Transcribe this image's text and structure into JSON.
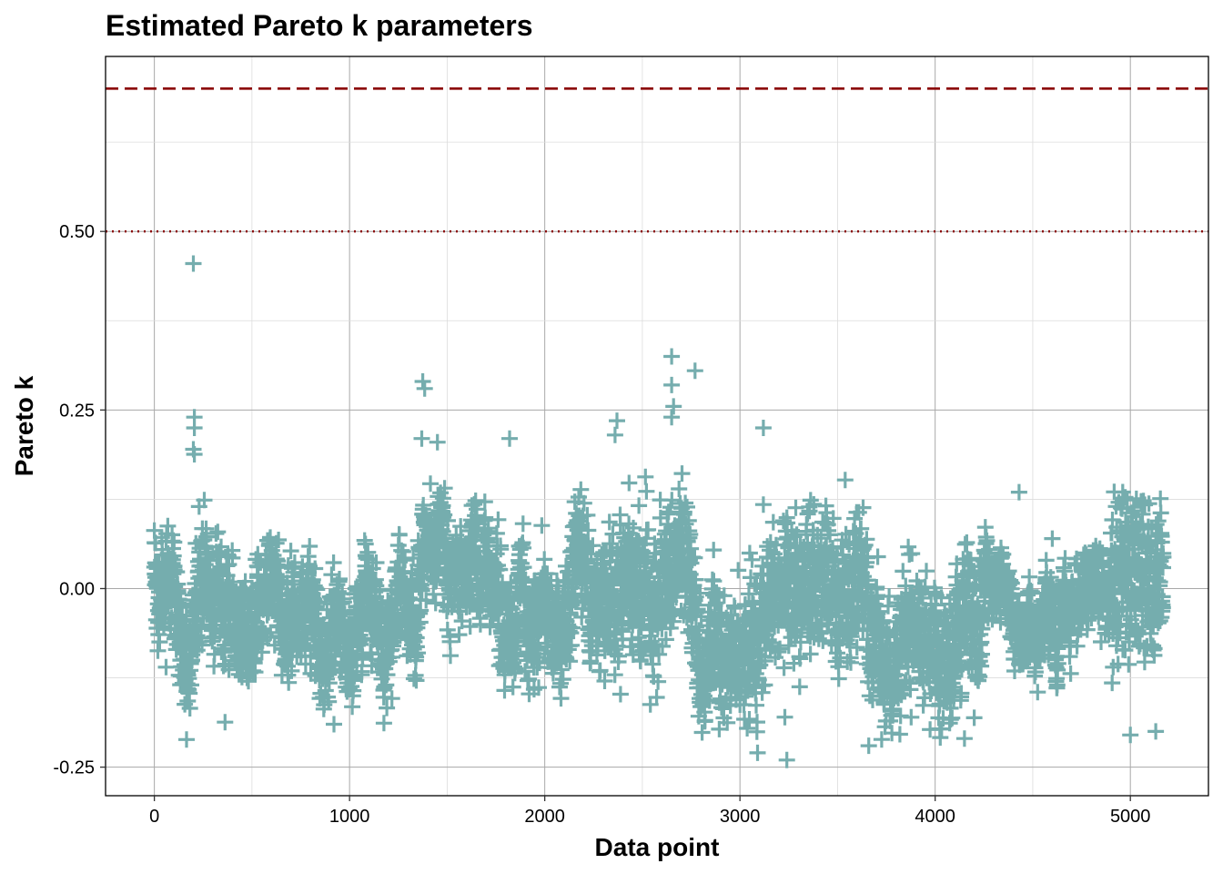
{
  "chart_data": {
    "type": "scatter",
    "title": "Estimated Pareto k parameters",
    "xlabel": "Data point",
    "ylabel": "Pareto k",
    "xlim": [
      -250,
      5400
    ],
    "ylim": [
      -0.29,
      0.745
    ],
    "x_ticks": [
      0,
      1000,
      2000,
      3000,
      4000,
      5000
    ],
    "y_ticks": [
      -0.25,
      0.0,
      0.25,
      0.5
    ],
    "x_tick_labels": [
      "0",
      "1000",
      "2000",
      "3000",
      "4000",
      "5000"
    ],
    "y_tick_labels": [
      "-0.25",
      "0.00",
      "0.25",
      "0.50"
    ],
    "grid": true,
    "marker": "plus",
    "point_color": "#75adae",
    "reference_lines": [
      {
        "y": 0.7,
        "style": "dashed",
        "color": "#8b0000"
      },
      {
        "y": 0.5,
        "style": "dotted",
        "color": "#8b0000"
      }
    ],
    "n_points": 5170,
    "regimes": [
      {
        "x": [
          0,
          150
        ],
        "center": 0.02,
        "spread": 0.04
      },
      {
        "x": [
          150,
          400
        ],
        "center": -0.01,
        "spread": 0.05
      },
      {
        "x": [
          400,
          800
        ],
        "center": -0.03,
        "spread": 0.045
      },
      {
        "x": [
          800,
          1350
        ],
        "center": -0.05,
        "spread": 0.04
      },
      {
        "x": [
          1350,
          1750
        ],
        "center": 0.02,
        "spread": 0.04
      },
      {
        "x": [
          1750,
          2300
        ],
        "center": -0.01,
        "spread": 0.05
      },
      {
        "x": [
          2300,
          2750
        ],
        "center": 0.0,
        "spread": 0.06
      },
      {
        "x": [
          2750,
          3050
        ],
        "center": -0.07,
        "spread": 0.06
      },
      {
        "x": [
          3050,
          3650
        ],
        "center": 0.0,
        "spread": 0.06
      },
      {
        "x": [
          3650,
          4250
        ],
        "center": -0.06,
        "spread": 0.055
      },
      {
        "x": [
          4250,
          4900
        ],
        "center": -0.03,
        "spread": 0.03
      },
      {
        "x": [
          4900,
          5170
        ],
        "center": 0.0,
        "spread": 0.07
      }
    ],
    "outliers": [
      {
        "x": 200,
        "y": 0.455
      },
      {
        "x": 205,
        "y": 0.24
      },
      {
        "x": 205,
        "y": 0.225
      },
      {
        "x": 200,
        "y": 0.195
      },
      {
        "x": 205,
        "y": 0.188
      },
      {
        "x": 1375,
        "y": 0.29
      },
      {
        "x": 1385,
        "y": 0.28
      },
      {
        "x": 1370,
        "y": 0.21
      },
      {
        "x": 1450,
        "y": 0.205
      },
      {
        "x": 2370,
        "y": 0.235
      },
      {
        "x": 2360,
        "y": 0.215
      },
      {
        "x": 2650,
        "y": 0.325
      },
      {
        "x": 2770,
        "y": 0.305
      },
      {
        "x": 2650,
        "y": 0.285
      },
      {
        "x": 2660,
        "y": 0.255
      },
      {
        "x": 2650,
        "y": 0.24
      },
      {
        "x": 3120,
        "y": 0.225
      },
      {
        "x": 3240,
        "y": -0.24
      },
      {
        "x": 3230,
        "y": -0.18
      },
      {
        "x": 1820,
        "y": 0.21
      },
      {
        "x": 3660,
        "y": -0.22
      },
      {
        "x": 4150,
        "y": -0.21
      },
      {
        "x": 5000,
        "y": -0.205
      },
      {
        "x": 5130,
        "y": -0.2
      },
      {
        "x": 920,
        "y": -0.19
      },
      {
        "x": 60,
        "y": -0.11
      },
      {
        "x": 4600,
        "y": 0.07
      },
      {
        "x": 4430,
        "y": 0.135
      }
    ]
  }
}
